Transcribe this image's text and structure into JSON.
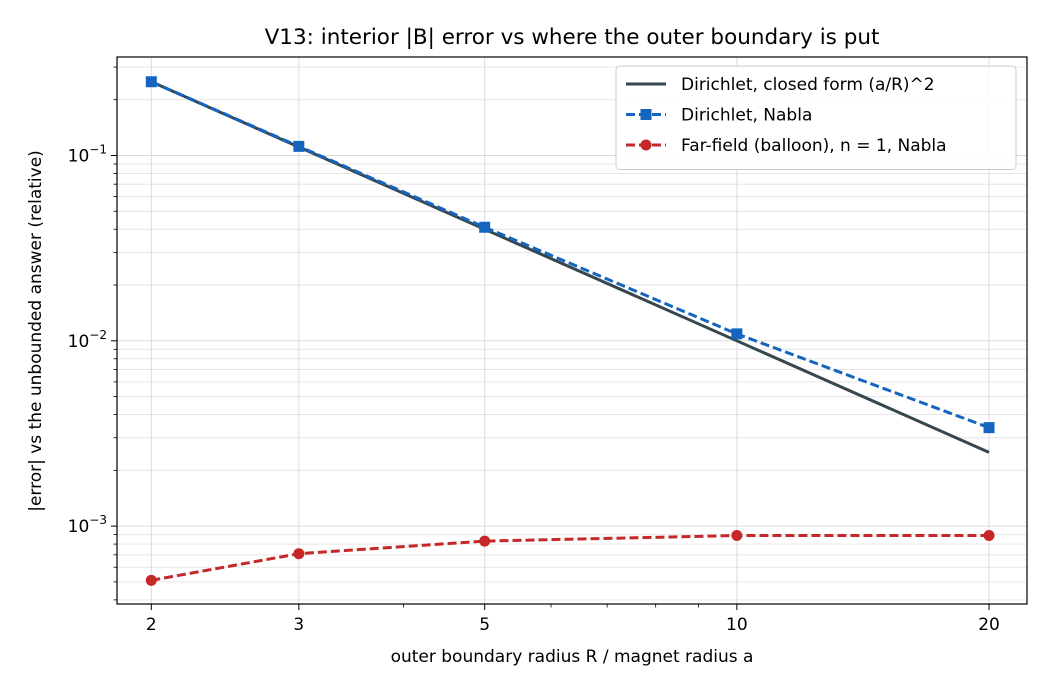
{
  "chart_data": {
    "type": "line",
    "title": "V13: interior |B| error vs where the outer boundary is put",
    "xlabel": "outer boundary radius R / magnet radius a",
    "ylabel": "|error| vs the unbounded answer (relative)",
    "x_scale": "log",
    "y_scale": "log",
    "xlim": [
      1.82,
      22.2
    ],
    "ylim": [
      0.00038,
      0.34
    ],
    "x_ticks": [
      2,
      3,
      5,
      10,
      20
    ],
    "x_tick_labels": [
      "2",
      "3",
      "5",
      "10",
      "20"
    ],
    "y_ticks": [
      0.001,
      0.01,
      0.1
    ],
    "y_tick_labels": [
      {
        "base": "10",
        "exp": "−3"
      },
      {
        "base": "10",
        "exp": "−2"
      },
      {
        "base": "10",
        "exp": "−1"
      }
    ],
    "grid": true,
    "legend_position": "top-right",
    "series": [
      {
        "name": "Dirichlet, closed form  (a/R)^2",
        "color": "#37474f",
        "style": "solid",
        "marker": "none",
        "x": [
          2,
          3,
          5,
          10,
          20
        ],
        "y": [
          0.25,
          0.1111,
          0.04,
          0.01,
          0.0025
        ]
      },
      {
        "name": "Dirichlet, Nabla",
        "color": "#1565c0",
        "style": "dashed",
        "marker": "square",
        "x": [
          2,
          3,
          5,
          10,
          20
        ],
        "y": [
          0.25,
          0.112,
          0.041,
          0.0109,
          0.0034
        ]
      },
      {
        "name": "Far-field (balloon), n = 1, Nabla",
        "color": "#c62828",
        "style": "dashed",
        "marker": "circle",
        "x": [
          2,
          3,
          5,
          10,
          20
        ],
        "y": [
          0.00051,
          0.00071,
          0.00083,
          0.00089,
          0.00089
        ]
      }
    ]
  }
}
